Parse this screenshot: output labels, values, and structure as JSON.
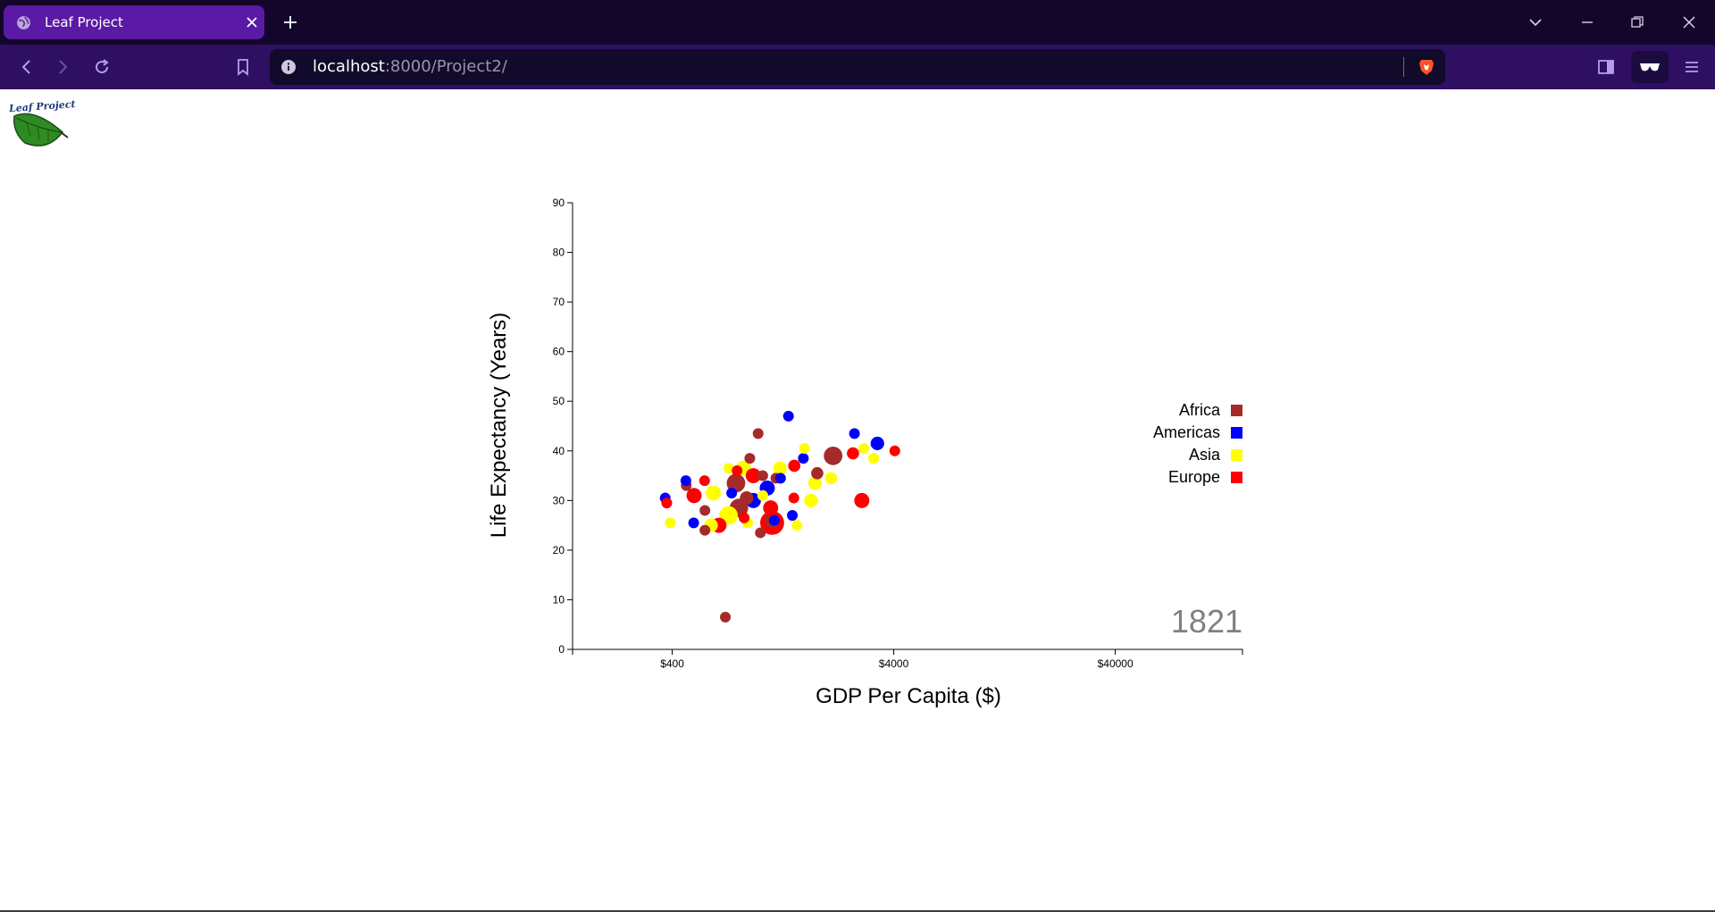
{
  "browser": {
    "tab_title": "Leaf Project",
    "url_host": "localhost",
    "url_rest": ":8000/Project2/",
    "icons": {
      "favicon": "globe-icon",
      "tab_close": "close-icon",
      "new_tab": "plus-icon",
      "tab_list": "chevron-down-icon",
      "minimize": "minimize-icon",
      "restore": "restore-icon",
      "close_window": "close-icon",
      "back": "back-arrow-icon",
      "forward": "forward-arrow-icon",
      "reload": "reload-icon",
      "bookmark": "bookmark-icon",
      "site_info": "info-icon",
      "shields": "brave-lion-icon",
      "sidebar": "sidebar-icon",
      "reader": "glasses-icon",
      "menu": "hamburger-menu-icon"
    },
    "colors": {
      "titlebar": "#13062a",
      "tab_active": "#5a1aa6",
      "toolbar": "#2e0f62",
      "urlbar": "#120a2a"
    }
  },
  "page": {
    "logo_text": "Leaf Project"
  },
  "chart_data": {
    "type": "scatter",
    "xlabel": "GDP Per Capita ($)",
    "ylabel": "Life Expectancy (Years)",
    "x_scale": "log",
    "xlim": [
      142,
      150000
    ],
    "ylim": [
      0,
      90
    ],
    "x_ticks": [
      400,
      4000,
      40000
    ],
    "x_tick_labels": [
      "$400",
      "$4000",
      "$40000"
    ],
    "y_ticks": [
      0,
      10,
      20,
      30,
      40,
      50,
      60,
      70,
      80,
      90
    ],
    "year_label": "1821",
    "legend_position": "right",
    "grid": false,
    "legend": [
      {
        "name": "Africa",
        "color": "#a52a2a"
      },
      {
        "name": "Americas",
        "color": "#0000ff"
      },
      {
        "name": "Asia",
        "color": "#ffff00"
      },
      {
        "name": "Europe",
        "color": "#ff0000"
      }
    ],
    "points": [
      {
        "continent": "Africa",
        "x": 695,
        "y": 6.5,
        "r": 1
      },
      {
        "continent": "Africa",
        "x": 977,
        "y": 43.5,
        "r": 1
      },
      {
        "continent": "Africa",
        "x": 896,
        "y": 38.5,
        "r": 1
      },
      {
        "continent": "Africa",
        "x": 2130,
        "y": 39,
        "r": 3
      },
      {
        "continent": "Africa",
        "x": 1806,
        "y": 35.5,
        "r": 1.3
      },
      {
        "continent": "Africa",
        "x": 1025,
        "y": 35,
        "r": 1
      },
      {
        "continent": "Africa",
        "x": 463,
        "y": 33,
        "r": 1
      },
      {
        "continent": "Africa",
        "x": 776,
        "y": 33.5,
        "r": 3
      },
      {
        "continent": "Africa",
        "x": 1175,
        "y": 34.5,
        "r": 1
      },
      {
        "continent": "Africa",
        "x": 562,
        "y": 28,
        "r": 1
      },
      {
        "continent": "Africa",
        "x": 562,
        "y": 24,
        "r": 1
      },
      {
        "continent": "Africa",
        "x": 800,
        "y": 28.5,
        "r": 3
      },
      {
        "continent": "Africa",
        "x": 1000,
        "y": 23.5,
        "r": 1
      },
      {
        "continent": "Africa",
        "x": 1130,
        "y": 26,
        "r": 2
      },
      {
        "continent": "Africa",
        "x": 867,
        "y": 30.5,
        "r": 1.6
      },
      {
        "continent": "Americas",
        "x": 1339,
        "y": 47,
        "r": 1
      },
      {
        "continent": "Americas",
        "x": 2659,
        "y": 43.5,
        "r": 1
      },
      {
        "continent": "Americas",
        "x": 3374,
        "y": 41.5,
        "r": 1.6
      },
      {
        "continent": "Americas",
        "x": 1563,
        "y": 38.5,
        "r": 1
      },
      {
        "continent": "Americas",
        "x": 461,
        "y": 34,
        "r": 1
      },
      {
        "continent": "Americas",
        "x": 372,
        "y": 30.5,
        "r": 1
      },
      {
        "continent": "Americas",
        "x": 500,
        "y": 25.5,
        "r": 1
      },
      {
        "continent": "Americas",
        "x": 1394,
        "y": 27,
        "r": 1
      },
      {
        "continent": "Americas",
        "x": 1156,
        "y": 26,
        "r": 1
      },
      {
        "continent": "Americas",
        "x": 1074,
        "y": 32.5,
        "r": 2
      },
      {
        "continent": "Americas",
        "x": 930,
        "y": 30,
        "r": 2
      },
      {
        "continent": "Americas",
        "x": 1233,
        "y": 34.5,
        "r": 1
      },
      {
        "continent": "Americas",
        "x": 742,
        "y": 31.5,
        "r": 1
      },
      {
        "continent": "Asia",
        "x": 392,
        "y": 25.5,
        "r": 1
      },
      {
        "continent": "Asia",
        "x": 1582,
        "y": 40.5,
        "r": 1
      },
      {
        "continent": "Asia",
        "x": 2929,
        "y": 40.5,
        "r": 1
      },
      {
        "continent": "Asia",
        "x": 3247,
        "y": 38.5,
        "r": 1
      },
      {
        "continent": "Asia",
        "x": 2085,
        "y": 34.5,
        "r": 1.3
      },
      {
        "continent": "Asia",
        "x": 1692,
        "y": 30,
        "r": 1.6
      },
      {
        "continent": "Asia",
        "x": 1463,
        "y": 25,
        "r": 1
      },
      {
        "continent": "Asia",
        "x": 720,
        "y": 36.5,
        "r": 1
      },
      {
        "continent": "Asia",
        "x": 838,
        "y": 36.5,
        "r": 2
      },
      {
        "continent": "Asia",
        "x": 614,
        "y": 31.5,
        "r": 2
      },
      {
        "continent": "Asia",
        "x": 718,
        "y": 27,
        "r": 3
      },
      {
        "continent": "Asia",
        "x": 599,
        "y": 25,
        "r": 1.6
      },
      {
        "continent": "Asia",
        "x": 877,
        "y": 25.5,
        "r": 1
      },
      {
        "continent": "Asia",
        "x": 1226,
        "y": 36.5,
        "r": 1.6
      },
      {
        "continent": "Asia",
        "x": 1764,
        "y": 33.5,
        "r": 1.6
      },
      {
        "continent": "Asia",
        "x": 1025,
        "y": 31,
        "r": 1
      },
      {
        "continent": "Europe",
        "x": 4044,
        "y": 40,
        "r": 1
      },
      {
        "continent": "Europe",
        "x": 2618,
        "y": 39.5,
        "r": 1.3
      },
      {
        "continent": "Europe",
        "x": 2870,
        "y": 30,
        "r": 2
      },
      {
        "continent": "Europe",
        "x": 1130,
        "y": 25.5,
        "r": 5
      },
      {
        "continent": "Europe",
        "x": 1113,
        "y": 28.5,
        "r": 2
      },
      {
        "continent": "Europe",
        "x": 785,
        "y": 36,
        "r": 1
      },
      {
        "continent": "Europe",
        "x": 560,
        "y": 34,
        "r": 1
      },
      {
        "continent": "Europe",
        "x": 502,
        "y": 31,
        "r": 2
      },
      {
        "continent": "Europe",
        "x": 650,
        "y": 25,
        "r": 2
      },
      {
        "continent": "Europe",
        "x": 378,
        "y": 29.5,
        "r": 1
      },
      {
        "continent": "Europe",
        "x": 1416,
        "y": 30.5,
        "r": 1
      },
      {
        "continent": "Europe",
        "x": 929,
        "y": 35,
        "r": 2
      },
      {
        "continent": "Europe",
        "x": 845,
        "y": 26.5,
        "r": 1
      },
      {
        "continent": "Europe",
        "x": 1423,
        "y": 37,
        "r": 1.3
      }
    ]
  }
}
